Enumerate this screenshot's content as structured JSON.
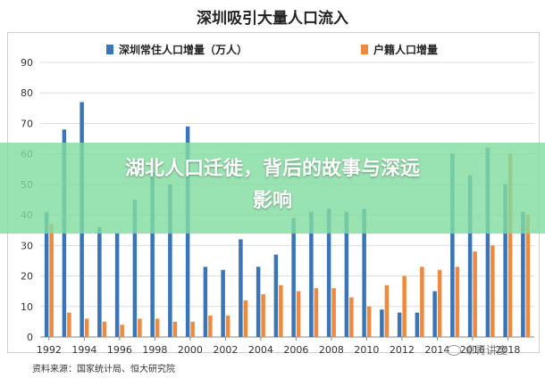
{
  "chart_data": {
    "type": "bar",
    "title": "深圳吸引大量人口流入",
    "x": [
      1992,
      1993,
      1994,
      1995,
      1996,
      1997,
      1998,
      1999,
      2000,
      2001,
      2002,
      2003,
      2004,
      2005,
      2006,
      2007,
      2008,
      2009,
      2010,
      2011,
      2012,
      2013,
      2014,
      2015,
      2016,
      2017,
      2018,
      2019
    ],
    "x_tick_labels": [
      "1992",
      "1994",
      "1996",
      "1998",
      "2000",
      "2002",
      "2004",
      "2006",
      "2008",
      "2010",
      "2012",
      "2014",
      "2016",
      "2018"
    ],
    "x_tick_values": [
      1992,
      1994,
      1996,
      1998,
      2000,
      2002,
      2004,
      2006,
      2008,
      2010,
      2012,
      2014,
      2016,
      2018
    ],
    "series": [
      {
        "name": "深圳常住人口增量（万人）",
        "color": "#3a75b8",
        "values": [
          41,
          68,
          77,
          36,
          34,
          45,
          54,
          50,
          69,
          23,
          22,
          32,
          23,
          27,
          39,
          41,
          42,
          41,
          42,
          9,
          8,
          8,
          15,
          60,
          53,
          62,
          50,
          41
        ]
      },
      {
        "name": "户籍人口增量",
        "color": "#ed8a3f",
        "values": [
          37,
          8,
          6,
          5,
          4,
          6,
          6,
          5,
          5,
          7,
          7,
          12,
          14,
          17,
          15,
          16,
          16,
          13,
          10,
          17,
          20,
          23,
          22,
          23,
          28,
          30,
          60,
          40
        ]
      }
    ],
    "ylim": [
      0,
      90
    ],
    "yticks": [
      0,
      10,
      20,
      30,
      40,
      50,
      60,
      70,
      80,
      90
    ],
    "grid": true,
    "legend": "top"
  },
  "source": "资料来源：国家统计局、恒大研究院",
  "banner": {
    "line1": "湖北人口迁徙，背后的故事与深远",
    "line2": "影响"
  },
  "watermark": "卓青讲度"
}
